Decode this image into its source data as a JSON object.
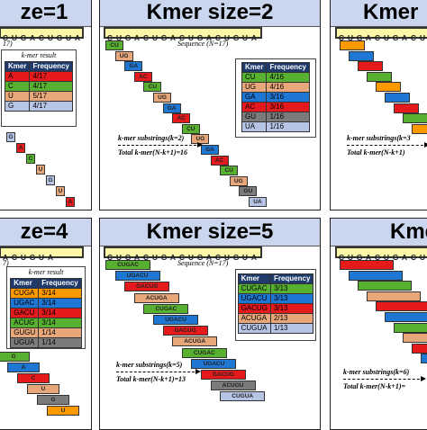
{
  "colors": {
    "seq": "#fbf7a6",
    "header": "#c9d6ee",
    "palette": [
      "#ff9900",
      "#1f77d4",
      "#58b030",
      "#e41a1c",
      "#e7a77a",
      "#7b7b7b",
      "#b6c5e6"
    ]
  },
  "sequence": "CUGACUGACUGACUGUA",
  "seq_caption": "Sequence (N=17)",
  "result_title": "k-mer result",
  "col_kmer": "Kmer",
  "col_freq": "Frequency",
  "panels": [
    {
      "id": "k1",
      "title": "ze=1",
      "seq_text": "CUGACUGUA",
      "caption": "17)",
      "result_title": "k-mer result",
      "rows": [
        {
          "kmer": "A",
          "freq": "4/17",
          "color": "#e41a1c"
        },
        {
          "kmer": "C",
          "freq": "4/17",
          "color": "#58b030"
        },
        {
          "kmer": "U",
          "freq": "5/17",
          "color": "#e7a77a"
        },
        {
          "kmer": "G",
          "freq": "4/17",
          "color": "#b6c5e6"
        }
      ],
      "blocks": [
        "G",
        "A",
        "C",
        "U",
        "G",
        "U",
        "A"
      ]
    },
    {
      "id": "k2",
      "title": "Kmer size=2",
      "rows": [
        {
          "kmer": "CU",
          "freq": "4/16",
          "color": "#58b030"
        },
        {
          "kmer": "UG",
          "freq": "4/16",
          "color": "#e7a77a"
        },
        {
          "kmer": "GA",
          "freq": "3/16",
          "color": "#1f77d4"
        },
        {
          "kmer": "AC",
          "freq": "3/16",
          "color": "#e41a1c"
        },
        {
          "kmer": "GU",
          "freq": "1/16",
          "color": "#7b7b7b"
        },
        {
          "kmer": "UA",
          "freq": "1/16",
          "color": "#b6c5e6"
        }
      ],
      "blocks": [
        "CU",
        "UG",
        "GA",
        "AC",
        "CU",
        "UG",
        "GA",
        "AC",
        "CU",
        "UG",
        "GA",
        "AC",
        "CU",
        "UG",
        "GU",
        "UA"
      ],
      "note1": "k-mer substrings(k=2)",
      "note2": "Total k-mer(N-k+1)=16"
    },
    {
      "id": "k3",
      "title": "Kmer",
      "seq_text": "CUGACUGACUGAC",
      "note1": "k-mer substrings(k=3",
      "note2": "Total k-mer(N-k+1)"
    },
    {
      "id": "k4",
      "title": "ze=4",
      "seq_text": "ACUGUA",
      "caption": "7)",
      "result_title": "k-mer result",
      "rows": [
        {
          "kmer": "CUGA",
          "freq": "3/14",
          "color": "#ff9900"
        },
        {
          "kmer": "UGAC",
          "freq": "3/14",
          "color": "#1f77d4"
        },
        {
          "kmer": "GACU",
          "freq": "3/14",
          "color": "#e41a1c"
        },
        {
          "kmer": "ACUG",
          "freq": "3/14",
          "color": "#58b030"
        },
        {
          "kmer": "GUGU",
          "freq": "1/14",
          "color": "#e7a77a"
        },
        {
          "kmer": "UGUA",
          "freq": "1/14",
          "color": "#7b7b7b"
        }
      ],
      "blocks": [
        "G",
        "A",
        "C",
        "U",
        "G",
        "U"
      ]
    },
    {
      "id": "k5",
      "title": "Kmer size=5",
      "rows": [
        {
          "kmer": "CUGAC",
          "freq": "3/13",
          "color": "#58b030"
        },
        {
          "kmer": "UGACU",
          "freq": "3/13",
          "color": "#1f77d4"
        },
        {
          "kmer": "GACUG",
          "freq": "3/13",
          "color": "#e41a1c"
        },
        {
          "kmer": "ACUGA",
          "freq": "2/13",
          "color": "#e7a77a"
        },
        {
          "kmer": "CUGUA",
          "freq": "1/13",
          "color": "#b6c5e6"
        }
      ],
      "blocks": [
        "CUGAC",
        "UGACU",
        "GACUG",
        "ACUGA",
        "CUGAC",
        "UGACU",
        "GACUG",
        "ACUGA",
        "CUGAC",
        "UGACU",
        "GACUG",
        "ACUGU",
        "CUGUA"
      ],
      "note1": "k-mer substrings(k=5)",
      "note2": "Total k-mer(N-k+1)=13"
    },
    {
      "id": "k6",
      "title": "Kmer",
      "seq_text": "CUGACUGACUGAC",
      "note1": "k-mer substrings(k=6)",
      "note2": "Total k-mer(N-k+1)="
    }
  ]
}
